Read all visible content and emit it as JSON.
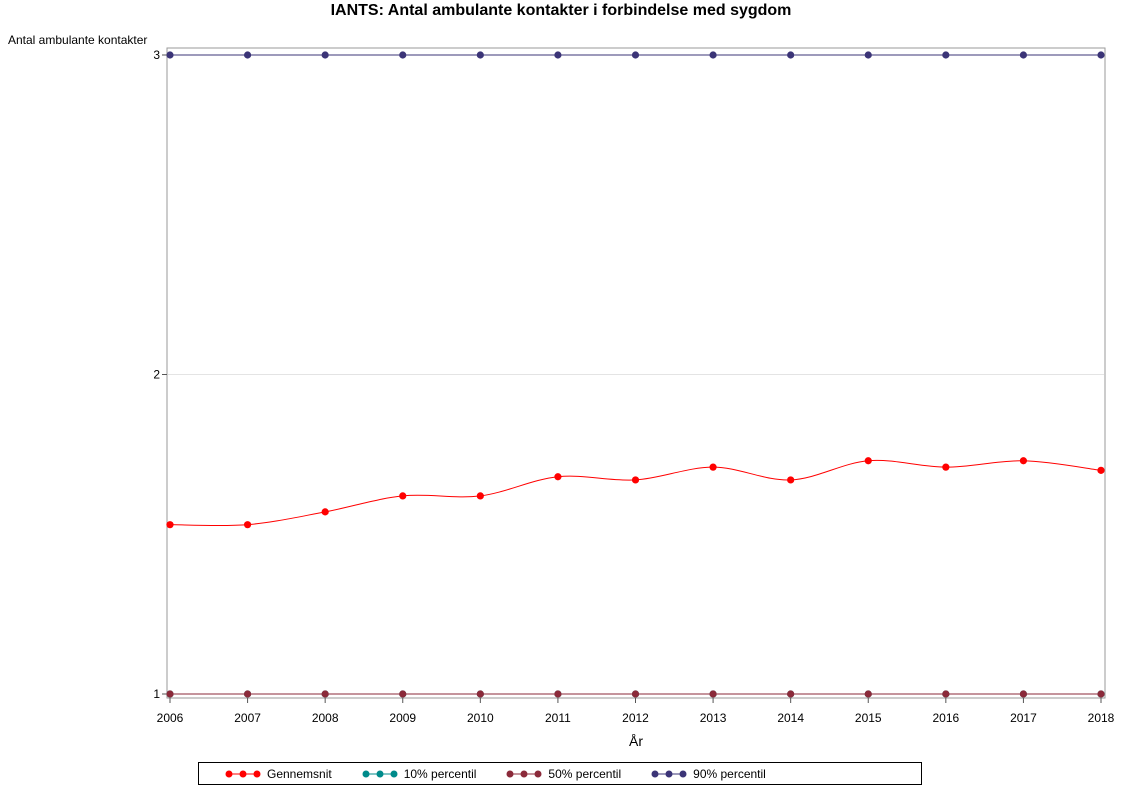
{
  "chart_data": {
    "type": "line",
    "title": "IANTS: Antal ambulante kontakter i forbindelse med sygdom",
    "xlabel": "År",
    "ylabel": "Antal ambulante kontakter",
    "x": [
      "2006",
      "2007",
      "2008",
      "2009",
      "2010",
      "2011",
      "2012",
      "2013",
      "2014",
      "2015",
      "2016",
      "2017",
      "2018"
    ],
    "ylim": [
      1,
      3
    ],
    "yticks": [
      "1",
      "2",
      "3"
    ],
    "grid": "horizontal",
    "legend_position": "bottom",
    "series": [
      {
        "name": "Gennemsnit",
        "color": "#ff0000",
        "values": [
          1.53,
          1.53,
          1.57,
          1.62,
          1.62,
          1.68,
          1.67,
          1.71,
          1.67,
          1.73,
          1.71,
          1.73,
          1.7
        ]
      },
      {
        "name": "10% percentil",
        "color": "#008b8b",
        "values": [
          1,
          1,
          1,
          1,
          1,
          1,
          1,
          1,
          1,
          1,
          1,
          1,
          1
        ]
      },
      {
        "name": "50% percentil",
        "color": "#8b2a3a",
        "values": [
          1,
          1,
          1,
          1,
          1,
          1,
          1,
          1,
          1,
          1,
          1,
          1,
          1
        ]
      },
      {
        "name": "90% percentil",
        "color": "#3b3477",
        "values": [
          3,
          3,
          3,
          3,
          3,
          3,
          3,
          3,
          3,
          3,
          3,
          3,
          3
        ]
      }
    ]
  }
}
